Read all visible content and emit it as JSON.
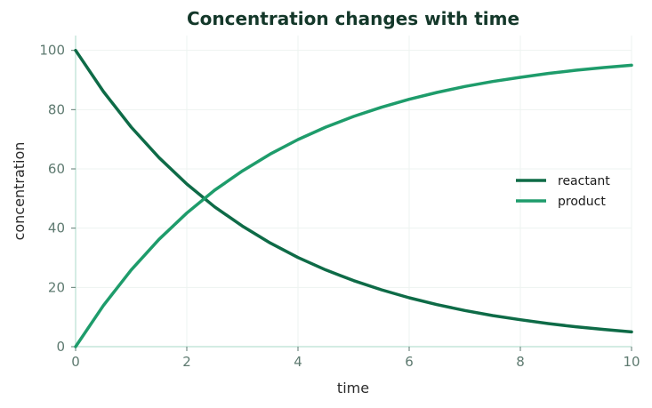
{
  "chart_data": {
    "type": "line",
    "title": "Concentration changes with time",
    "xlabel": "time",
    "ylabel": "concentration",
    "xlim": [
      0,
      10
    ],
    "ylim": [
      0,
      105
    ],
    "xticks": [
      0,
      2,
      4,
      6,
      8,
      10
    ],
    "yticks": [
      0,
      20,
      40,
      60,
      80,
      100
    ],
    "grid": true,
    "legend_position": "right",
    "x": [
      0,
      0.5,
      1,
      1.5,
      2,
      2.5,
      3,
      3.5,
      4,
      4.5,
      5,
      5.5,
      6,
      6.5,
      7,
      7.5,
      8,
      8.5,
      9,
      9.5,
      10
    ],
    "series": [
      {
        "name": "reactant",
        "color": "#0e6b47",
        "values": [
          100,
          86.1,
          74.1,
          63.8,
          54.9,
          47.2,
          40.7,
          35.0,
          30.1,
          25.9,
          22.3,
          19.2,
          16.5,
          14.2,
          12.2,
          10.5,
          9.1,
          7.8,
          6.7,
          5.8,
          5.0
        ]
      },
      {
        "name": "product",
        "color": "#1e9c6b",
        "values": [
          0,
          13.9,
          25.9,
          36.2,
          45.1,
          52.8,
          59.3,
          65.0,
          69.9,
          74.1,
          77.7,
          80.8,
          83.5,
          85.8,
          87.8,
          89.5,
          90.9,
          92.2,
          93.3,
          94.2,
          95.0
        ]
      }
    ]
  }
}
